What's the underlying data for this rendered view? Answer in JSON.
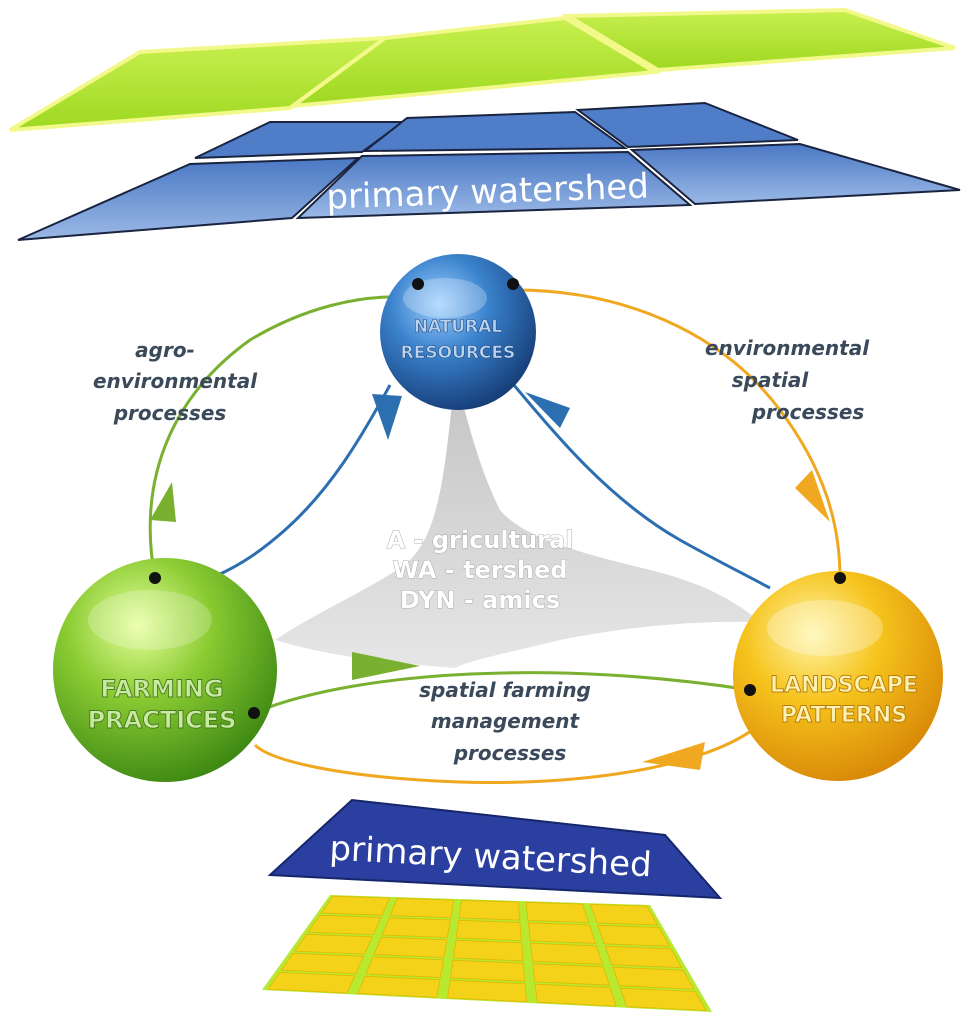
{
  "top_layer": {
    "label": "primary watershed"
  },
  "bottom_layer": {
    "label": "primary watershed"
  },
  "nodes": {
    "natural_resources": {
      "line1": "NATURAL",
      "line2": "RESOURCES",
      "color": "#2f6fb8"
    },
    "farming_practices": {
      "line1": "FARMING",
      "line2": "PRACTICES",
      "color": "#7cc23a"
    },
    "landscape_patterns": {
      "line1": "LANDSCAPE",
      "line2": "PATTERNS",
      "color": "#f2b21c"
    }
  },
  "center": {
    "line1": "A - gricultural",
    "line2": "WA - tershed",
    "line3": "DYN - amics"
  },
  "processes": {
    "agro": {
      "line1": "agro-",
      "line2": "environmental",
      "line3": "processes"
    },
    "environmental": {
      "line1": "environmental",
      "line2": "spatial",
      "line3": "processes"
    },
    "farming": {
      "line1": "spatial farming",
      "line2": "management",
      "line3": "processes"
    }
  },
  "colors": {
    "green_arrow": "#7ab030",
    "orange_arrow": "#f0a820",
    "blue_arrow": "#2c6fb0",
    "grid_yellow": "#f5d21a",
    "grid_green": "#b8e830",
    "watershed_blue": "#2a3fa0"
  }
}
